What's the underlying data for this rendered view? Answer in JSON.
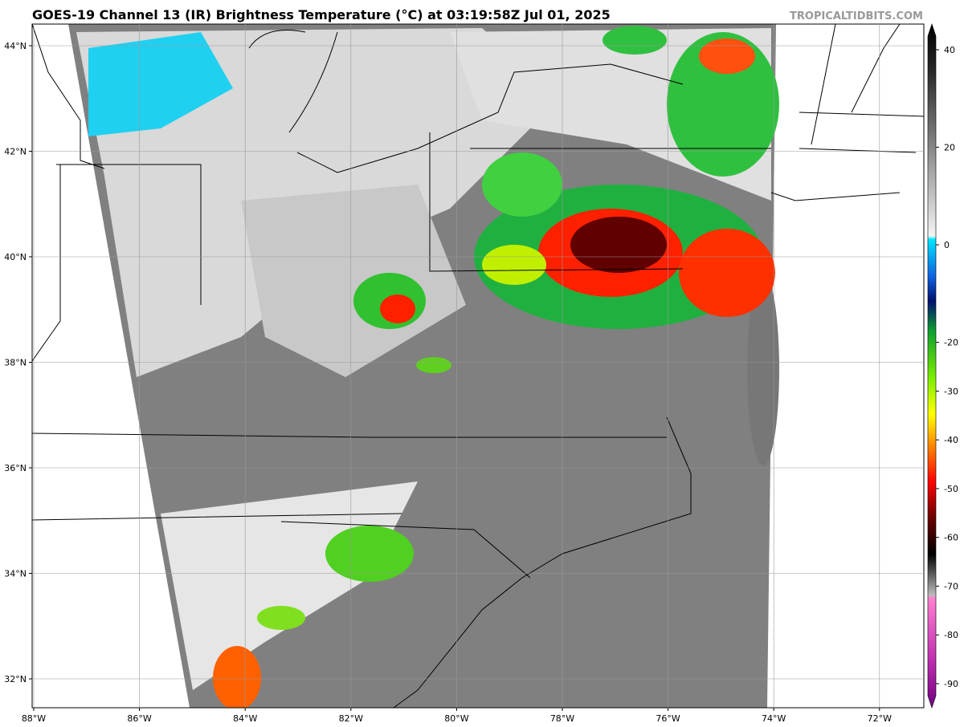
{
  "header": {
    "title": "GOES-19 Channel 13 (IR) Brightness Temperature (°C) at 03:19:58Z Jul 01, 2025",
    "credit": "TROPICALTIDBITS.COM"
  },
  "map": {
    "lat_labels": [
      "44°N",
      "42°N",
      "40°N",
      "38°N",
      "36°N",
      "34°N",
      "32°N"
    ],
    "lon_labels": [
      "88°W",
      "86°W",
      "84°W",
      "82°W",
      "80°W",
      "78°W",
      "76°W",
      "74°W",
      "72°W"
    ]
  },
  "colorbar": {
    "ticks": [
      40,
      20,
      0,
      -20,
      -30,
      -40,
      -50,
      -60,
      -70,
      -80,
      -90
    ]
  }
}
